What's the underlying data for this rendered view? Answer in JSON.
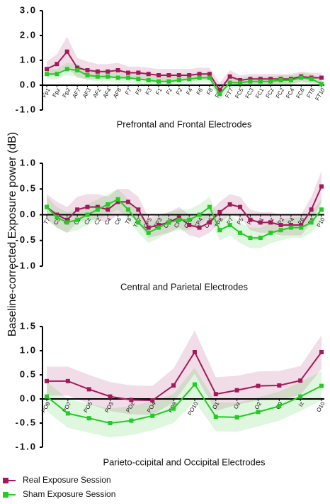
{
  "ylabel": "Baseline-corrected Exposure power (dB)",
  "chart_data": [
    {
      "type": "line",
      "title": "Prefrontal and Frontal Electrodes",
      "categories": [
        "Fp1",
        "Fpz",
        "Fp2",
        "AF7",
        "AF3",
        "AFz",
        "AF4",
        "AF8",
        "F7",
        "F5",
        "F3",
        "F1",
        "Fz",
        "F2",
        "F4",
        "F6",
        "F8",
        "FT9",
        "FT7",
        "FC5",
        "FC3",
        "FC1",
        "FCz",
        "FC2",
        "FC4",
        "FC6",
        "FT8",
        "FT10"
      ],
      "ylim": [
        -1,
        3
      ],
      "yticks": [
        {
          "value": 3,
          "label": "3.0"
        },
        {
          "value": 2,
          "label": "2.0"
        },
        {
          "value": 1,
          "label": "1.0"
        },
        {
          "value": 0,
          "label": "0.0"
        },
        {
          "value": -1,
          "label": "-1.0"
        }
      ],
      "series": [
        {
          "name": "Real Exposure Session",
          "color": "#a3195b",
          "values": [
            0.65,
            0.85,
            1.35,
            0.7,
            0.6,
            0.55,
            0.55,
            0.6,
            0.5,
            0.5,
            0.45,
            0.4,
            0.4,
            0.4,
            0.4,
            0.45,
            0.45,
            -0.2,
            0.35,
            0.2,
            0.25,
            0.25,
            0.25,
            0.25,
            0.25,
            0.35,
            0.3,
            0.3
          ],
          "errors": [
            0.3,
            0.4,
            0.6,
            0.4,
            0.35,
            0.3,
            0.3,
            0.3,
            0.25,
            0.25,
            0.25,
            0.25,
            0.25,
            0.25,
            0.25,
            0.25,
            0.25,
            0.3,
            0.25,
            0.2,
            0.2,
            0.2,
            0.2,
            0.2,
            0.2,
            0.2,
            0.2,
            0.2
          ]
        },
        {
          "name": "Sham Exposure Session",
          "color": "#22cc22",
          "values": [
            0.45,
            0.45,
            0.65,
            0.6,
            0.4,
            0.35,
            0.35,
            0.3,
            0.3,
            0.25,
            0.2,
            0.15,
            0.15,
            0.2,
            0.25,
            0.3,
            0.3,
            -0.35,
            0.1,
            0.1,
            0.15,
            0.15,
            0.15,
            0.2,
            0.2,
            0.3,
            0.25,
            0.05
          ],
          "errors": [
            0.2,
            0.2,
            0.25,
            0.25,
            0.2,
            0.2,
            0.2,
            0.2,
            0.2,
            0.2,
            0.2,
            0.2,
            0.2,
            0.2,
            0.2,
            0.2,
            0.2,
            0.25,
            0.2,
            0.2,
            0.2,
            0.2,
            0.2,
            0.2,
            0.2,
            0.2,
            0.2,
            0.2
          ]
        }
      ]
    },
    {
      "type": "line",
      "title": "Central and Parietal Electrodes",
      "categories": [
        "T7",
        "C5",
        "C3",
        "C1",
        "Cz",
        "C2",
        "C4",
        "C6",
        "T8",
        "TP7",
        "CP5",
        "CP3",
        "CP1",
        "CPz",
        "CP2",
        "CP4",
        "CP6",
        "TP8",
        "P7",
        "P5",
        "P3",
        "P1",
        "Pz",
        "P2",
        "P4",
        "P6",
        "P8",
        "P10"
      ],
      "ylim": [
        -1,
        1
      ],
      "yticks": [
        {
          "value": 1,
          "label": "1.0"
        },
        {
          "value": 0.5,
          "label": "0.5"
        },
        {
          "value": 0,
          "label": "0.0"
        },
        {
          "value": -0.5,
          "label": "-0.5"
        },
        {
          "value": -1,
          "label": "-1.0"
        }
      ],
      "series": [
        {
          "name": "Real Exposure Session",
          "color": "#a3195b",
          "values": [
            0.15,
            0,
            -0.1,
            0.1,
            0.15,
            0.15,
            0.1,
            0.25,
            0.25,
            0.1,
            -0.25,
            -0.2,
            -0.15,
            -0.05,
            -0.2,
            -0.25,
            -0.15,
            0.05,
            0.2,
            0.15,
            -0.1,
            -0.15,
            -0.15,
            -0.2,
            -0.2,
            -0.2,
            0.1,
            0.55
          ],
          "errors": [
            0.25,
            0.25,
            0.25,
            0.25,
            0.25,
            0.25,
            0.25,
            0.25,
            0.25,
            0.25,
            0.2,
            0.2,
            0.2,
            0.2,
            0.2,
            0.2,
            0.2,
            0.2,
            0.2,
            0.2,
            0.2,
            0.2,
            0.2,
            0.2,
            0.2,
            0.2,
            0.25,
            0.3
          ]
        },
        {
          "name": "Sham Exposure Session",
          "color": "#22cc22",
          "values": [
            0.15,
            -0.05,
            -0.15,
            -0.1,
            0,
            0.1,
            0.2,
            0.3,
            0.1,
            -0.15,
            -0.35,
            -0.25,
            -0.15,
            -0.1,
            -0.1,
            0,
            0.15,
            -0.3,
            -0.2,
            -0.35,
            -0.45,
            -0.45,
            -0.35,
            -0.3,
            -0.25,
            -0.25,
            -0.15,
            0.1
          ],
          "errors": [
            0.2,
            0.2,
            0.2,
            0.2,
            0.2,
            0.2,
            0.2,
            0.2,
            0.2,
            0.2,
            0.2,
            0.2,
            0.2,
            0.2,
            0.2,
            0.2,
            0.2,
            0.2,
            0.2,
            0.2,
            0.2,
            0.2,
            0.2,
            0.2,
            0.2,
            0.2,
            0.2,
            0.2
          ]
        }
      ]
    },
    {
      "type": "line",
      "title": "Parieto-ccipital and Occipital Electrodes",
      "categories": [
        "PO9",
        "PO7",
        "PO5",
        "PO3",
        "POz",
        "PO4",
        "PO8",
        "PO10",
        "O1",
        "Oz",
        "O2",
        "O9",
        "Iz",
        "O10"
      ],
      "ylim": [
        -1,
        1.5
      ],
      "yticks": [
        {
          "value": 1.5,
          "label": "1.5"
        },
        {
          "value": 1,
          "label": "1.0"
        },
        {
          "value": 0.5,
          "label": "0.5"
        },
        {
          "value": 0,
          "label": "0.0"
        },
        {
          "value": -0.5,
          "label": "-0.5"
        },
        {
          "value": -1,
          "label": "-1.0"
        }
      ],
      "series": [
        {
          "name": "Real Exposure Session",
          "color": "#a3195b",
          "values": [
            0.37,
            0.37,
            0.2,
            0.05,
            -0.02,
            -0.03,
            0.28,
            0.97,
            0.1,
            0.18,
            0.27,
            0.28,
            0.38,
            0.97
          ],
          "errors": [
            0.3,
            0.3,
            0.3,
            0.3,
            0.3,
            0.3,
            0.35,
            0.45,
            0.35,
            0.3,
            0.3,
            0.3,
            0.3,
            0.35
          ]
        },
        {
          "name": "Sham Exposure Session",
          "color": "#22cc22",
          "values": [
            0.05,
            -0.3,
            -0.4,
            -0.5,
            -0.45,
            -0.35,
            -0.2,
            0.3,
            -0.37,
            -0.38,
            -0.27,
            -0.15,
            0.05,
            0.27
          ],
          "errors": [
            0.3,
            0.3,
            0.3,
            0.3,
            0.3,
            0.3,
            0.3,
            0.35,
            0.3,
            0.3,
            0.3,
            0.3,
            0.3,
            0.3
          ]
        }
      ]
    }
  ]
}
